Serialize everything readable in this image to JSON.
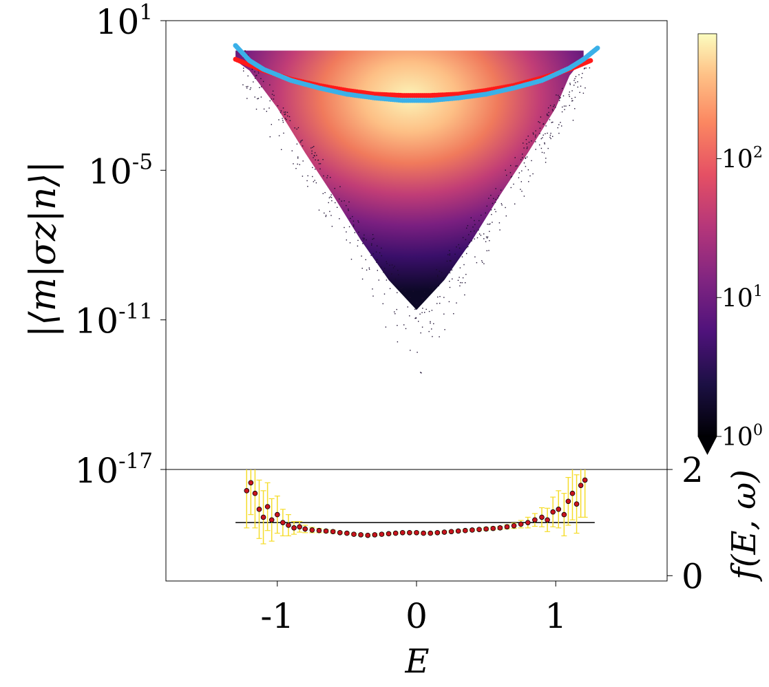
{
  "chart_data": [
    {
      "type": "scatter",
      "panel": "main",
      "ylabel": "|⟨m|σz|n⟩|",
      "xlim": [
        -1.8,
        1.8
      ],
      "ylim_log10": [
        -17,
        1
      ],
      "yscale": "log",
      "y_ticks": [
        {
          "base": "10",
          "exp": "1",
          "value_log10": 1
        },
        {
          "base": "10",
          "exp": "-5",
          "value_log10": -5
        },
        {
          "base": "10",
          "exp": "-11",
          "value_log10": -11
        },
        {
          "base": "10",
          "exp": "-17",
          "value_log10": -17
        }
      ],
      "density_shape": {
        "energy_profile": [
          {
            "E": -1.3,
            "upper_log10": -0.2,
            "lower_log10": -0.6
          },
          {
            "E": -1.2,
            "upper_log10": -0.2,
            "lower_log10": -1.0
          },
          {
            "E": -1.0,
            "upper_log10": -0.2,
            "lower_log10": -2.5
          },
          {
            "E": -0.8,
            "upper_log10": -0.2,
            "lower_log10": -4.3
          },
          {
            "E": -0.6,
            "upper_log10": -0.2,
            "lower_log10": -6.0
          },
          {
            "E": -0.4,
            "upper_log10": -0.2,
            "lower_log10": -7.8
          },
          {
            "E": -0.2,
            "upper_log10": -0.2,
            "lower_log10": -9.4
          },
          {
            "E": 0.0,
            "upper_log10": -0.2,
            "lower_log10": -10.6
          },
          {
            "E": 0.2,
            "upper_log10": -0.2,
            "lower_log10": -9.4
          },
          {
            "E": 0.4,
            "upper_log10": -0.2,
            "lower_log10": -7.8
          },
          {
            "E": 0.6,
            "upper_log10": -0.2,
            "lower_log10": -6.0
          },
          {
            "E": 0.8,
            "upper_log10": -0.2,
            "lower_log10": -4.3
          },
          {
            "E": 1.0,
            "upper_log10": -0.2,
            "lower_log10": -2.5
          },
          {
            "E": 1.1,
            "upper_log10": -0.2,
            "lower_log10": -1.2
          },
          {
            "E": 1.2,
            "upper_log10": -0.2,
            "lower_log10": -0.5
          }
        ]
      },
      "series": [
        {
          "color": "#ff1a1a",
          "E": [
            -1.3,
            -1.1,
            -0.9,
            -0.7,
            -0.5,
            -0.3,
            -0.1,
            0.1,
            0.3,
            0.5,
            0.7,
            0.9,
            1.1,
            1.25
          ],
          "log10_y": [
            -0.55,
            -1.0,
            -1.35,
            -1.6,
            -1.8,
            -1.95,
            -2.0,
            -2.0,
            -1.95,
            -1.8,
            -1.6,
            -1.3,
            -0.95,
            -0.6
          ]
        },
        {
          "color": "#3ab0e8",
          "E": [
            -1.3,
            -1.2,
            -1.1,
            -0.9,
            -0.7,
            -0.5,
            -0.3,
            -0.1,
            0.1,
            0.3,
            0.5,
            0.7,
            0.9,
            1.1,
            1.2,
            1.3
          ],
          "log10_y": [
            0.0,
            -0.6,
            -0.95,
            -1.4,
            -1.7,
            -1.95,
            -2.1,
            -2.2,
            -2.2,
            -2.1,
            -1.95,
            -1.7,
            -1.4,
            -0.9,
            -0.55,
            -0.1
          ]
        }
      ]
    },
    {
      "type": "colorbar",
      "colormap": "magma",
      "scale": "log",
      "range_log10": [
        0,
        2.9
      ],
      "ticks": [
        {
          "base": "10",
          "exp": "2",
          "value_log10": 2
        },
        {
          "base": "10",
          "exp": "1",
          "value_log10": 1
        },
        {
          "base": "10",
          "exp": "0",
          "value_log10": 0
        }
      ],
      "extend": "min"
    },
    {
      "type": "scatter",
      "panel": "ratio",
      "xlabel": "E",
      "ylabel": "f(E, ω)",
      "xlim": [
        -1.8,
        1.8
      ],
      "ylim": [
        -0.1,
        2.0
      ],
      "x_ticks": [
        "-1",
        "0",
        "1"
      ],
      "x_tick_values": [
        -1,
        0,
        1
      ],
      "y_ticks": [
        "0",
        "2"
      ],
      "y_tick_values": [
        0,
        2
      ],
      "reference_line": {
        "y": 1.0,
        "x_range": [
          -1.3,
          1.28
        ],
        "color": "#000000"
      },
      "marker_color": "#c8141e",
      "errorbar_color": "#f5dc2a",
      "points": [
        {
          "E": -1.22,
          "y": 1.6,
          "err": 0.7
        },
        {
          "E": -1.19,
          "y": 1.75,
          "err": 0.6
        },
        {
          "E": -1.16,
          "y": 1.55,
          "err": 0.65
        },
        {
          "E": -1.13,
          "y": 1.25,
          "err": 0.55
        },
        {
          "E": -1.1,
          "y": 1.1,
          "err": 0.5
        },
        {
          "E": -1.07,
          "y": 1.3,
          "err": 0.45
        },
        {
          "E": -1.04,
          "y": 1.05,
          "err": 0.4
        },
        {
          "E": -1.0,
          "y": 1.15,
          "err": 0.35
        },
        {
          "E": -0.96,
          "y": 1.0,
          "err": 0.25
        },
        {
          "E": -0.92,
          "y": 0.95,
          "err": 0.2
        },
        {
          "E": -0.88,
          "y": 0.9,
          "err": 0.12
        },
        {
          "E": -0.84,
          "y": 0.92,
          "err": 0.1
        },
        {
          "E": -0.8,
          "y": 0.88,
          "err": 0.07
        },
        {
          "E": -0.75,
          "y": 0.86,
          "err": 0.05
        },
        {
          "E": -0.7,
          "y": 0.85,
          "err": 0.04
        },
        {
          "E": -0.65,
          "y": 0.84,
          "err": 0.03
        },
        {
          "E": -0.6,
          "y": 0.83,
          "err": 0.03
        },
        {
          "E": -0.55,
          "y": 0.81,
          "err": 0.02
        },
        {
          "E": -0.5,
          "y": 0.8,
          "err": 0.02
        },
        {
          "E": -0.45,
          "y": 0.78,
          "err": 0.02
        },
        {
          "E": -0.4,
          "y": 0.77,
          "err": 0.02
        },
        {
          "E": -0.35,
          "y": 0.76,
          "err": 0.02
        },
        {
          "E": -0.3,
          "y": 0.77,
          "err": 0.02
        },
        {
          "E": -0.25,
          "y": 0.78,
          "err": 0.02
        },
        {
          "E": -0.2,
          "y": 0.79,
          "err": 0.02
        },
        {
          "E": -0.15,
          "y": 0.8,
          "err": 0.02
        },
        {
          "E": -0.1,
          "y": 0.81,
          "err": 0.02
        },
        {
          "E": -0.05,
          "y": 0.81,
          "err": 0.02
        },
        {
          "E": 0.0,
          "y": 0.81,
          "err": 0.02
        },
        {
          "E": 0.05,
          "y": 0.8,
          "err": 0.02
        },
        {
          "E": 0.1,
          "y": 0.8,
          "err": 0.02
        },
        {
          "E": 0.15,
          "y": 0.81,
          "err": 0.02
        },
        {
          "E": 0.2,
          "y": 0.82,
          "err": 0.02
        },
        {
          "E": 0.25,
          "y": 0.83,
          "err": 0.02
        },
        {
          "E": 0.3,
          "y": 0.84,
          "err": 0.02
        },
        {
          "E": 0.35,
          "y": 0.85,
          "err": 0.02
        },
        {
          "E": 0.4,
          "y": 0.86,
          "err": 0.02
        },
        {
          "E": 0.45,
          "y": 0.87,
          "err": 0.02
        },
        {
          "E": 0.5,
          "y": 0.88,
          "err": 0.03
        },
        {
          "E": 0.55,
          "y": 0.89,
          "err": 0.03
        },
        {
          "E": 0.6,
          "y": 0.9,
          "err": 0.03
        },
        {
          "E": 0.65,
          "y": 0.92,
          "err": 0.04
        },
        {
          "E": 0.7,
          "y": 0.94,
          "err": 0.05
        },
        {
          "E": 0.75,
          "y": 0.97,
          "err": 0.07
        },
        {
          "E": 0.8,
          "y": 1.0,
          "err": 0.1
        },
        {
          "E": 0.85,
          "y": 1.05,
          "err": 0.12
        },
        {
          "E": 0.9,
          "y": 1.1,
          "err": 0.18
        },
        {
          "E": 0.94,
          "y": 1.05,
          "err": 0.22
        },
        {
          "E": 0.98,
          "y": 1.2,
          "err": 0.28
        },
        {
          "E": 1.02,
          "y": 1.25,
          "err": 0.35
        },
        {
          "E": 1.06,
          "y": 1.15,
          "err": 0.4
        },
        {
          "E": 1.09,
          "y": 1.4,
          "err": 0.45
        },
        {
          "E": 1.12,
          "y": 1.55,
          "err": 0.5
        },
        {
          "E": 1.15,
          "y": 1.35,
          "err": 0.55
        },
        {
          "E": 1.18,
          "y": 1.7,
          "err": 0.6
        },
        {
          "E": 1.21,
          "y": 1.8,
          "err": 0.7
        }
      ]
    }
  ]
}
